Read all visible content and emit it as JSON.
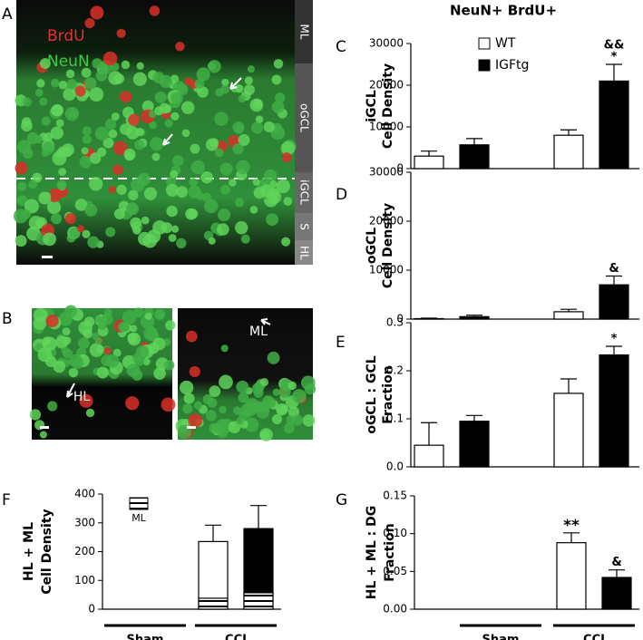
{
  "figure": {
    "title": "NeuN+ BrdU+",
    "panel_labels": [
      "A",
      "B",
      "C",
      "D",
      "E",
      "F",
      "G"
    ],
    "image_a": {
      "labels": [
        "BrdU",
        "NeuN"
      ],
      "layers": [
        "ML",
        "oGCL",
        "iGCL",
        "S",
        "HL"
      ]
    },
    "image_b": {
      "labels": [
        "HL",
        "ML"
      ]
    }
  },
  "chart_data": [
    {
      "type": "bar",
      "ylabel": [
        "iGCL",
        "Cell Density"
      ],
      "categories": [
        null,
        null
      ],
      "legend": "upper left",
      "ylim": [
        0,
        30000
      ],
      "yticks": [
        0,
        10000,
        20000,
        30000
      ],
      "series": [
        {
          "name": "WT",
          "color": "#ffffff",
          "values": [
            3000,
            8000
          ],
          "errors": [
            1200,
            1300
          ],
          "annotations": [
            null,
            null
          ]
        },
        {
          "name": "IGFtg",
          "color": "#000000",
          "values": [
            5700,
            21000
          ],
          "errors": [
            1500,
            4000
          ],
          "annotations": [
            null,
            [
              "&&",
              "*"
            ]
          ]
        }
      ]
    },
    {
      "type": "bar",
      "ylabel": [
        "oGCL",
        "Cell Density"
      ],
      "categories": [
        null,
        null
      ],
      "ylim": [
        0,
        30000
      ],
      "yticks": [
        0,
        10000,
        20000,
        30000
      ],
      "series": [
        {
          "color": "#ffffff",
          "values": [
            100,
            1500
          ],
          "errors": [
            100,
            500
          ],
          "annotations": [
            null,
            null
          ]
        },
        {
          "color": "#000000",
          "values": [
            500,
            7000
          ],
          "errors": [
            300,
            1800
          ],
          "annotations": [
            null,
            [
              "&"
            ]
          ]
        }
      ]
    },
    {
      "type": "bar",
      "ylabel": [
        "oGCL : GCL",
        "Fraction"
      ],
      "categories": [
        null,
        null
      ],
      "ylim": [
        0,
        0.3
      ],
      "yticks": [
        {
          "value": 0,
          "label": "0.0"
        },
        0.1,
        0.2,
        0.3
      ],
      "series": [
        {
          "color": "#ffffff",
          "values": [
            0.045,
            0.153
          ],
          "errors": [
            0.047,
            0.03
          ],
          "annotations": [
            null,
            null
          ]
        },
        {
          "color": "#000000",
          "values": [
            0.095,
            0.233
          ],
          "errors": [
            0.012,
            0.018
          ],
          "annotations": [
            null,
            [
              "*"
            ]
          ]
        }
      ]
    },
    {
      "type": "bar",
      "ylabel": [
        "HL + ML",
        "Cell Density"
      ],
      "categories": [
        "Sham",
        "CCI"
      ],
      "inset_label": "ML",
      "ylim": [
        0,
        400
      ],
      "yticks": [
        0,
        100,
        200,
        300,
        400
      ],
      "series": [
        {
          "color": "#ffffff",
          "values": [
            null,
            235
          ],
          "errors": [
            null,
            57
          ],
          "ml_values": [
            null,
            38
          ],
          "annotations": [
            null,
            null
          ]
        },
        {
          "color": "#000000",
          "values": [
            null,
            280
          ],
          "errors": [
            null,
            80
          ],
          "ml_values": [
            null,
            57
          ],
          "annotations": [
            null,
            null
          ]
        }
      ]
    },
    {
      "type": "bar",
      "ylabel": [
        "HL + ML : DG",
        "Fraction"
      ],
      "categories": [
        "Sham",
        "CCI"
      ],
      "ylim": [
        0,
        0.15
      ],
      "yticks": [
        {
          "value": 0,
          "label": "0.00"
        },
        {
          "value": 0.05,
          "label": "0.05"
        },
        {
          "value": 0.1,
          "label": "0.10"
        },
        {
          "value": 0.15,
          "label": "0.15"
        }
      ],
      "series": [
        {
          "color": "#ffffff",
          "values": [
            null,
            0.088
          ],
          "errors": [
            null,
            0.013
          ],
          "annotations": [
            null,
            [
              "**"
            ]
          ]
        },
        {
          "color": "#000000",
          "values": [
            null,
            0.042
          ],
          "errors": [
            null,
            0.01
          ],
          "annotations": [
            null,
            [
              "&"
            ]
          ]
        }
      ]
    }
  ]
}
